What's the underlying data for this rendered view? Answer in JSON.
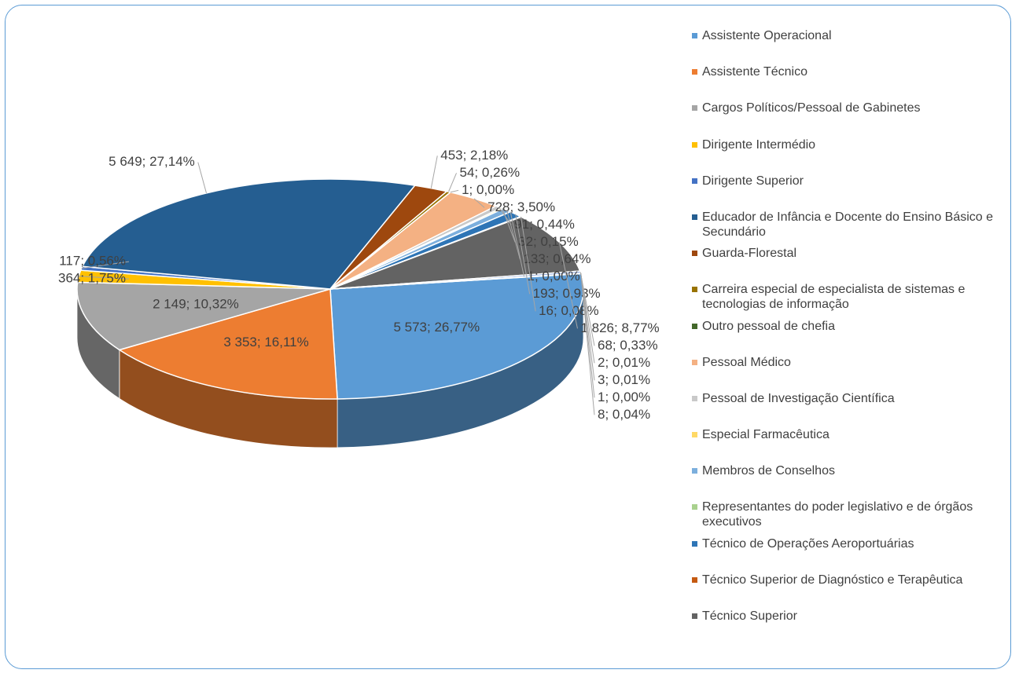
{
  "chart_data": {
    "type": "pie",
    "categories": [
      "Assistente Operacional",
      "Assistente Técnico",
      "Cargos Políticos/Pessoal de Gabinetes",
      "Dirigente Intermédio",
      "Dirigente Superior",
      "Educador de Infância e Docente do Ensino Básico e Secundário",
      "Guarda-Florestal",
      "Carreira especial de especialista de sistemas e tecnologias de informação",
      "Outro pessoal de chefia",
      "Pessoal Médico",
      "Pessoal de Investigação Científica",
      "Especial Farmacêutica",
      "Membros de Conselhos",
      "Representantes do poder legislativo e de órgãos executivos",
      "Técnico de Operações Aeroportuárias",
      "Técnico Superior de Diagnóstico e Terapêutica",
      "Técnico Superior",
      null,
      null,
      null,
      null,
      null
    ],
    "values": [
      5573,
      3353,
      2149,
      364,
      117,
      5649,
      453,
      54,
      1,
      728,
      91,
      32,
      133,
      1,
      193,
      16,
      1826,
      68,
      2,
      3,
      1,
      8
    ],
    "value_labels": [
      "5 573; 26,77%",
      "3 353; 16,11%",
      "2 149; 10,32%",
      "364; 1,75%",
      "117; 0,56%",
      "5 649; 27,14%",
      "453; 2,18%",
      "54; 0,26%",
      "1; 0,00%",
      "728; 3,50%",
      "91; 0,44%",
      "32; 0,15%",
      "133; 0,64%",
      "1; 0,00%",
      "193; 0,93%",
      "16; 0,08%",
      "1 826; 8,77%",
      "68; 0,33%",
      "2; 0,01%",
      "3; 0,01%",
      "1; 0,00%",
      "8; 0,04%"
    ],
    "colors": [
      "#5b9bd5",
      "#ed7d31",
      "#a5a5a5",
      "#ffc000",
      "#4472c4",
      "#255e91",
      "#9e480e",
      "#997300",
      "#43682b",
      "#f4b183",
      "#c9c9c9",
      "#ffd966",
      "#7cafdd",
      "#a9d18e",
      "#2e75b6",
      "#c55a11",
      "#636363",
      "#8faadc",
      "#f8cbad",
      "#dbdbdb",
      "#ffe699",
      "#b4c7e7"
    ]
  }
}
